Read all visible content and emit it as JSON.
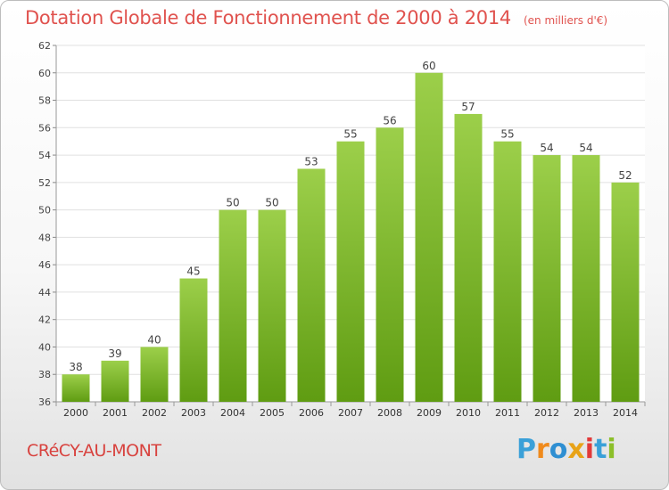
{
  "header": {
    "title": "Dotation Globale de Fonctionnement de 2000 à 2014",
    "unit": "(en milliers d'€)"
  },
  "footer": {
    "town": "CRéCY-AU-MONT",
    "logo": "Proxiti"
  },
  "colors": {
    "title": "#e0524e",
    "bar_top": "#9ccf4a",
    "bar_bottom": "#5f9c12",
    "grid": "#e0e0e0"
  },
  "chart_data": {
    "type": "bar",
    "title": "Dotation Globale de Fonctionnement de 2000 à 2014",
    "subtitle": "(en milliers d'€)",
    "xlabel": "",
    "ylabel": "",
    "ylim": [
      36,
      62
    ],
    "yticks": [
      36,
      38,
      40,
      42,
      44,
      46,
      48,
      50,
      52,
      54,
      56,
      58,
      60,
      62
    ],
    "grid": true,
    "categories": [
      "2000",
      "2001",
      "2002",
      "2003",
      "2004",
      "2005",
      "2006",
      "2007",
      "2008",
      "2009",
      "2010",
      "2011",
      "2012",
      "2013",
      "2014"
    ],
    "values": [
      38,
      39,
      40,
      45,
      50,
      50,
      53,
      55,
      56,
      60,
      57,
      55,
      54,
      54,
      52
    ]
  }
}
